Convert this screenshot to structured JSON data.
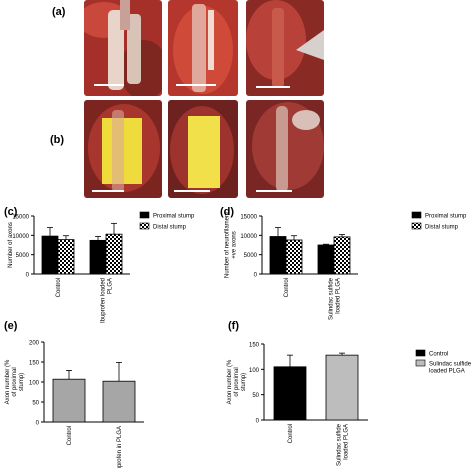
{
  "panels": {
    "a": "(a)",
    "b": "(b)",
    "c": "(c)",
    "d": "(d)",
    "e": "(e)",
    "f": "(f)"
  },
  "photos": {
    "row_a": [
      "surgical-photo-nerve-repair-1",
      "surgical-photo-nerve-repair-2",
      "surgical-photo-nerve-repair-3"
    ],
    "row_b": [
      "surgical-photo-yellow-plga-film-1",
      "surgical-photo-yellow-plga-film-2",
      "surgical-photo-nerve-3"
    ],
    "colors": {
      "tissue": "#b8342c",
      "tissue_dark": "#6e1c18",
      "film": "#f2e04a",
      "nerve": "#e6b8a8"
    }
  },
  "chart_data": [
    {
      "id": "c",
      "type": "bar",
      "ylabel": "Number of axons",
      "ylim": [
        0,
        15000
      ],
      "yticks": [
        "0",
        "5000",
        "10000",
        "15000"
      ],
      "categories": [
        "Control",
        "Ibuprofen loaded PLGA"
      ],
      "series": [
        {
          "name": "Proximal stump",
          "pattern": "solid",
          "values": [
            9800,
            8700
          ],
          "errors": [
            2200,
            1000
          ]
        },
        {
          "name": "Distal stump",
          "pattern": "checker",
          "values": [
            8900,
            10300
          ],
          "errors": [
            1000,
            2800
          ]
        }
      ],
      "legend": "right"
    },
    {
      "id": "d",
      "type": "bar",
      "ylabel": "Number of neurofilament +ve axons",
      "ylim": [
        0,
        15000
      ],
      "yticks": [
        "0",
        "5000",
        "10000",
        "15000"
      ],
      "categories": [
        "Control",
        "Sulindac sulfide loaded PLGA"
      ],
      "series": [
        {
          "name": "Proximal stump",
          "pattern": "solid",
          "values": [
            9700,
            7500
          ],
          "errors": [
            2300,
            200
          ]
        },
        {
          "name": "Distal stump",
          "pattern": "checker",
          "values": [
            8800,
            9600
          ],
          "errors": [
            1100,
            600
          ]
        }
      ],
      "legend": "right"
    },
    {
      "id": "e",
      "type": "bar",
      "ylabel": "Axon number (% of proximal stump)",
      "ylim": [
        0,
        200
      ],
      "yticks": [
        "0",
        "50",
        "100",
        "150",
        "200"
      ],
      "categories": [
        "Control",
        "Ibuprofen in PLGA"
      ],
      "series": [
        {
          "values": [
            107,
            102
          ],
          "errors": [
            22,
            47
          ],
          "colors": [
            "#a6a6a6",
            "#a6a6a6"
          ]
        }
      ]
    },
    {
      "id": "f",
      "type": "bar",
      "ylabel": "Axon number (% of proximal stump)",
      "ylim": [
        0,
        150
      ],
      "yticks": [
        "0",
        "50",
        "100",
        "150"
      ],
      "categories": [
        "Control",
        "Sulindac sulfide loaded PLGA"
      ],
      "series": [
        {
          "values": [
            105,
            128
          ],
          "errors": [
            23,
            4
          ],
          "colors": [
            "#000000",
            "#bdbdbd"
          ]
        }
      ],
      "legend_entries": [
        {
          "name": "Control",
          "color": "#000000"
        },
        {
          "name": "Sulindac sulfide loaded PLGA",
          "color": "#bdbdbd"
        }
      ],
      "legend": "right"
    }
  ]
}
